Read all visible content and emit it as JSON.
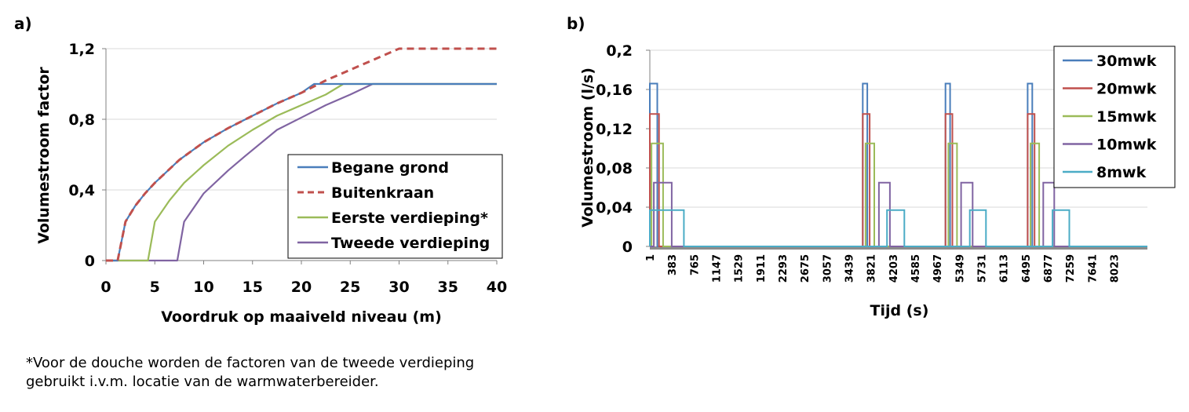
{
  "colors": {
    "begane": "#4a7ebb",
    "buiten": "#c0504d",
    "eerste": "#9bbb59",
    "tweede": "#8064a2",
    "w30": "#4a7ebb",
    "w20": "#c0504d",
    "w15": "#9bbb59",
    "w10": "#8064a2",
    "w8": "#4bacc6",
    "grid": "#d9d9d9",
    "axis": "#808080"
  },
  "chart_data": [
    {
      "panel_label": "a)",
      "type": "line",
      "title": "",
      "xlabel": "Voordruk op maaiveld niveau (m)",
      "ylabel": "Volumestroom factor",
      "xlim": [
        0,
        40
      ],
      "ylim": [
        0,
        1.2
      ],
      "x_ticks": [
        0,
        5,
        10,
        15,
        20,
        25,
        30,
        35,
        40
      ],
      "x_tick_labels": [
        "0",
        "5",
        "10",
        "15",
        "20",
        "25",
        "30",
        "35",
        "40"
      ],
      "y_ticks": [
        0,
        0.4,
        0.8,
        1.2
      ],
      "y_tick_labels": [
        "0",
        "0,4",
        "0,8",
        "1,2"
      ],
      "grid": "horizontal",
      "legend_position": "bottom-right",
      "series": [
        {
          "name": "Begane grond",
          "color_key": "begane",
          "dash": "solid",
          "x": [
            0,
            1,
            1.2,
            2,
            3,
            4,
            5,
            7.5,
            10,
            12.5,
            15,
            17.5,
            20,
            21.3,
            40
          ],
          "y": [
            0,
            0,
            0,
            0.22,
            0.31,
            0.38,
            0.44,
            0.57,
            0.67,
            0.75,
            0.82,
            0.89,
            0.95,
            1.0,
            1.0
          ]
        },
        {
          "name": "Buitenkraan",
          "color_key": "buiten",
          "dash": "dashed",
          "x": [
            0,
            1,
            1.2,
            2,
            3,
            4,
            5,
            7.5,
            10,
            12.5,
            15,
            17.5,
            20,
            22.5,
            25,
            27.5,
            30,
            40
          ],
          "y": [
            0,
            0,
            0,
            0.22,
            0.31,
            0.38,
            0.44,
            0.57,
            0.67,
            0.75,
            0.82,
            0.89,
            0.95,
            1.02,
            1.08,
            1.14,
            1.2,
            1.2
          ]
        },
        {
          "name": "Eerste verdieping*",
          "color_key": "eerste",
          "dash": "solid",
          "x": [
            0,
            4.3,
            5,
            6.5,
            8,
            10,
            12.5,
            15,
            17.5,
            20,
            22.5,
            24.3,
            40
          ],
          "y": [
            0,
            0,
            0.22,
            0.34,
            0.44,
            0.54,
            0.65,
            0.74,
            0.82,
            0.88,
            0.94,
            1.0,
            1.0
          ]
        },
        {
          "name": "Tweede verdieping",
          "color_key": "tweede",
          "dash": "solid",
          "x": [
            0,
            7.3,
            8,
            10,
            12.5,
            14.2,
            17.5,
            20,
            22.5,
            25,
            27.3,
            40
          ],
          "y": [
            0,
            0,
            0.22,
            0.38,
            0.51,
            0.59,
            0.74,
            0.81,
            0.88,
            0.94,
            1.0,
            1.0
          ]
        }
      ]
    },
    {
      "panel_label": "b)",
      "type": "line",
      "title": "",
      "xlabel": "Tijd (s)",
      "ylabel": "Volumestroom (l/s)",
      "xlim": [
        1,
        8600
      ],
      "ylim": [
        0,
        0.2
      ],
      "x_tick_labels": [
        "1",
        "383",
        "765",
        "1147",
        "1529",
        "1911",
        "2293",
        "2675",
        "3057",
        "3439",
        "3821",
        "4203",
        "4585",
        "4967",
        "5349",
        "5731",
        "6113",
        "6495",
        "6877",
        "7259",
        "7641",
        "8023"
      ],
      "y_ticks": [
        0,
        0.04,
        0.08,
        0.12,
        0.16,
        0.2
      ],
      "y_tick_labels": [
        "0",
        "0,04",
        "0,08",
        "0,12",
        "0,16",
        "0,2"
      ],
      "grid": "horizontal",
      "legend_position": "top-right",
      "series": [
        {
          "name": "30mwk",
          "color_key": "w30",
          "value": 0.166,
          "pulses": [
            [
              1,
              130
            ],
            [
              3680,
              3760
            ],
            [
              5110,
              5190
            ],
            [
              6530,
              6610
            ]
          ]
        },
        {
          "name": "20mwk",
          "color_key": "w20",
          "value": 0.135,
          "pulses": [
            [
              1,
              160
            ],
            [
              3680,
              3800
            ],
            [
              5110,
              5230
            ],
            [
              6530,
              6650
            ]
          ]
        },
        {
          "name": "15mwk",
          "color_key": "w15",
          "value": 0.105,
          "pulses": [
            [
              30,
              230
            ],
            [
              3730,
              3880
            ],
            [
              5160,
              5310
            ],
            [
              6580,
              6730
            ]
          ]
        },
        {
          "name": "10mwk",
          "color_key": "w10",
          "value": 0.065,
          "pulses": [
            [
              70,
              380
            ],
            [
              3960,
              4150
            ],
            [
              5380,
              5580
            ],
            [
              6800,
              6990
            ]
          ]
        },
        {
          "name": "8mwk",
          "color_key": "w8",
          "value": 0.037,
          "pulses": [
            [
              1,
              590
            ],
            [
              4100,
              4400
            ],
            [
              5530,
              5810
            ],
            [
              6960,
              7250
            ]
          ]
        }
      ]
    }
  ],
  "footnote": {
    "line1": "*Voor de douche worden de factoren van de tweede verdieping",
    "line2": "gebruikt i.v.m. locatie van de warmwaterbereider."
  }
}
